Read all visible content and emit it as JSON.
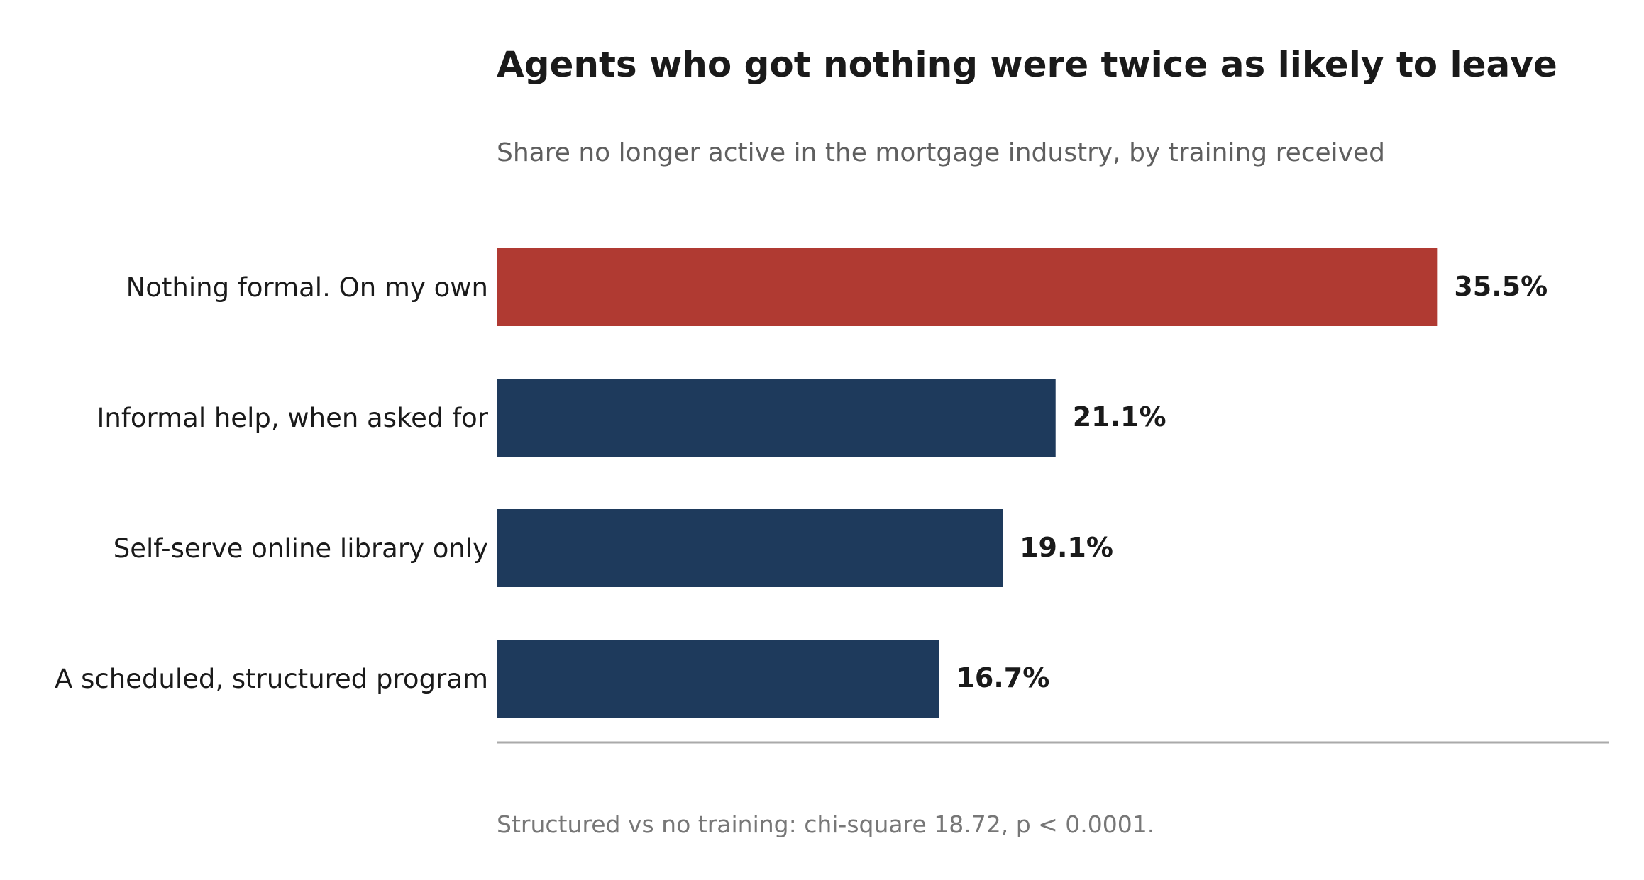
{
  "chart_data": {
    "type": "bar",
    "orientation": "horizontal",
    "title": "Agents who got nothing were twice as likely to leave",
    "subtitle": "Share no longer active in the mortgage industry, by training received",
    "categories": [
      "Nothing formal. On my own",
      "Informal help, when asked for",
      "Self-serve online library only",
      "A scheduled, structured program"
    ],
    "values": [
      35.5,
      21.1,
      19.1,
      16.7
    ],
    "value_labels": [
      "35.5%",
      "21.1%",
      "19.1%",
      "16.7%"
    ],
    "xlim": [
      0,
      42
    ],
    "grid": false,
    "colors": {
      "highlight": "#b03a32",
      "default": "#1e3a5c",
      "axis": "#aaaaaa"
    },
    "highlight_index": 0,
    "note": "Structured vs no training: chi-square 18.72, p < 0.0001."
  }
}
